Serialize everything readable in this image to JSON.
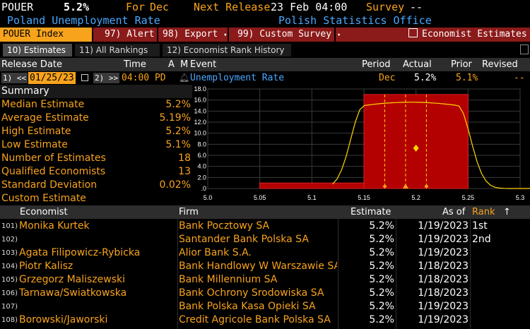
{
  "header": {
    "ticker": "POUER",
    "value": "5.2%",
    "for_label": "For",
    "period": "Dec",
    "next_release_label": "Next Release",
    "next_release": "23 Feb 04:00",
    "survey_label": "Survey",
    "survey_value": "--",
    "title": "Poland Unemployment Rate",
    "source": "Polish Statistics Office"
  },
  "toolbar": {
    "ticker_label": "POUER Index",
    "alert": "97) Alert",
    "export": "98) Export",
    "custom_survey": "99) Custom Survey",
    "economist_estimates": "Economist Estimates"
  },
  "tabs": [
    {
      "label": "10) Estimates"
    },
    {
      "label": "11) All Rankings"
    },
    {
      "label": "12) Economist Rank History"
    }
  ],
  "event_header": {
    "release_date": "Release Date",
    "time": "Time",
    "a": "A",
    "m": "M",
    "event": "Event",
    "period": "Period",
    "actual": "Actual",
    "prior": "Prior",
    "revised": "Revised"
  },
  "event_row": {
    "nav_back": "1) <<",
    "date": "01/25/23",
    "nav_fwd": "2) >>",
    "time": "04:00 PD",
    "event": "Unemployment Rate",
    "period": "Dec",
    "actual": "5.2%",
    "prior": "5.1%",
    "revised": "--"
  },
  "summary": {
    "title": "Summary",
    "rows": [
      {
        "label": "Median Estimate",
        "value": "5.2%"
      },
      {
        "label": "Average Estimate",
        "value": "5.19%"
      },
      {
        "label": "High Estimate",
        "value": "5.2%"
      },
      {
        "label": "Low Estimate",
        "value": "5.1%"
      },
      {
        "label": "Number of Estimates",
        "value": "18"
      },
      {
        "label": "Qualified Economists",
        "value": "13"
      },
      {
        "label": "Standard Deviation",
        "value": "0.02%"
      },
      {
        "label": "Custom Estimate",
        "value": ""
      }
    ]
  },
  "chart_data": {
    "type": "bar",
    "x_ticks": [
      "5.0",
      "5.05",
      "5.1",
      "5.15",
      "5.2",
      "5.25",
      "5.3"
    ],
    "y_ticks": [
      "18.0",
      "16.0",
      "14.0",
      "12.0",
      "10.0",
      "8.0",
      "6.0",
      "4.0",
      "2.0",
      ".0"
    ],
    "xlim": [
      5.0,
      5.3
    ],
    "ylim": [
      0,
      18
    ],
    "bars": [
      {
        "x0": 5.05,
        "x1": 5.15,
        "value": 1
      },
      {
        "x0": 5.15,
        "x1": 5.25,
        "value": 17
      }
    ],
    "colors": {
      "bar": "#b30000",
      "curve": "#ffd700",
      "marker": "#f8a31c",
      "grid": "#3a3a3a"
    }
  },
  "table": {
    "headers": {
      "economist": "Economist",
      "firm": "Firm",
      "estimate": "Estimate",
      "as_of": "As of",
      "rank": "Rank"
    },
    "rows": [
      {
        "num": "101)",
        "economist": "Monika Kurtek",
        "firm": "Bank Pocztowy SA",
        "estimate": "5.2%",
        "as_of": "1/19/2023",
        "rank": "1st"
      },
      {
        "num": "102)",
        "economist": "",
        "firm": "Santander Bank Polska SA",
        "estimate": "5.2%",
        "as_of": "1/19/2023",
        "rank": "2nd"
      },
      {
        "num": "103)",
        "economist": "Agata Filipowicz-Rybicka",
        "firm": "Alior Bank S.A.",
        "estimate": "5.2%",
        "as_of": "1/19/2023",
        "rank": ""
      },
      {
        "num": "104)",
        "economist": "Piotr Kalisz",
        "firm": "Bank Handlowy W Warszawie SA",
        "estimate": "5.2%",
        "as_of": "1/18/2023",
        "rank": ""
      },
      {
        "num": "105)",
        "economist": "Grzegorz Maliszewski",
        "firm": "Bank Millennium SA",
        "estimate": "5.2%",
        "as_of": "1/18/2023",
        "rank": ""
      },
      {
        "num": "106)",
        "economist": "Tarnawa/Swiatkowska",
        "firm": "Bank Ochrony Srodowiska SA",
        "estimate": "5.2%",
        "as_of": "1/18/2023",
        "rank": ""
      },
      {
        "num": "107)",
        "economist": "",
        "firm": "Bank Polska Kasa Opieki SA",
        "estimate": "5.2%",
        "as_of": "1/19/2023",
        "rank": ""
      },
      {
        "num": "108)",
        "economist": "Borowski/Jaworski",
        "firm": "Credit Agricole Bank Polska SA",
        "estimate": "5.2%",
        "as_of": "1/19/2023",
        "rank": ""
      }
    ]
  }
}
